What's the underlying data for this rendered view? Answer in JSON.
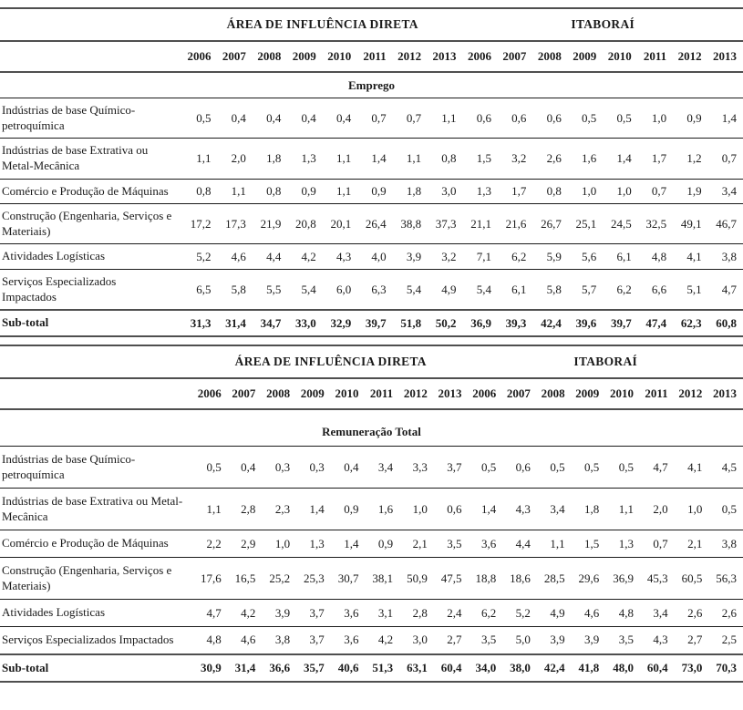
{
  "page": {
    "background_color": "#ffffff",
    "text_color": "#1b1b1b",
    "rule_color": "#4f4f4f"
  },
  "tables": [
    {
      "group_headers": [
        "ÁREA DE INFLUÊNCIA DIRETA",
        "ITABORAÍ"
      ],
      "years": [
        "2006",
        "2007",
        "2008",
        "2009",
        "2010",
        "2011",
        "2012",
        "2013",
        "2006",
        "2007",
        "2008",
        "2009",
        "2010",
        "2011",
        "2012",
        "2013"
      ],
      "section_label": "Emprego",
      "rows": [
        {
          "label": "Indústrias de base Químico-petroquímica",
          "bold": false,
          "values": [
            "0,5",
            "0,4",
            "0,4",
            "0,4",
            "0,4",
            "0,7",
            "0,7",
            "1,1",
            "0,6",
            "0,6",
            "0,6",
            "0,5",
            "0,5",
            "1,0",
            "0,9",
            "1,4"
          ]
        },
        {
          "label": "Indústrias de base Extrativa ou Metal-Mecânica",
          "bold": false,
          "values": [
            "1,1",
            "2,0",
            "1,8",
            "1,3",
            "1,1",
            "1,4",
            "1,1",
            "0,8",
            "1,5",
            "3,2",
            "2,6",
            "1,6",
            "1,4",
            "1,7",
            "1,2",
            "0,7"
          ]
        },
        {
          "label": "Comércio e Produção de Máquinas",
          "bold": false,
          "values": [
            "0,8",
            "1,1",
            "0,8",
            "0,9",
            "1,1",
            "0,9",
            "1,8",
            "3,0",
            "1,3",
            "1,7",
            "0,8",
            "1,0",
            "1,0",
            "0,7",
            "1,9",
            "3,4"
          ]
        },
        {
          "label": "Construção (Engenharia, Serviços e Materiais)",
          "bold": false,
          "values": [
            "17,2",
            "17,3",
            "21,9",
            "20,8",
            "20,1",
            "26,4",
            "38,8",
            "37,3",
            "21,1",
            "21,6",
            "26,7",
            "25,1",
            "24,5",
            "32,5",
            "49,1",
            "46,7"
          ]
        },
        {
          "label": "Atividades Logísticas",
          "bold": false,
          "values": [
            "5,2",
            "4,6",
            "4,4",
            "4,2",
            "4,3",
            "4,0",
            "3,9",
            "3,2",
            "7,1",
            "6,2",
            "5,9",
            "5,6",
            "6,1",
            "4,8",
            "4,1",
            "3,8"
          ]
        },
        {
          "label": "Serviços Especializados Impactados",
          "bold": false,
          "values": [
            "6,5",
            "5,8",
            "5,5",
            "5,4",
            "6,0",
            "6,3",
            "5,4",
            "4,9",
            "5,4",
            "6,1",
            "5,8",
            "5,7",
            "6,2",
            "6,6",
            "5,1",
            "4,7"
          ]
        },
        {
          "label": "Sub-total",
          "bold": true,
          "values": [
            "31,3",
            "31,4",
            "34,7",
            "33,0",
            "32,9",
            "39,7",
            "51,8",
            "50,2",
            "36,9",
            "39,3",
            "42,4",
            "39,6",
            "39,7",
            "47,4",
            "62,3",
            "60,8"
          ]
        }
      ]
    },
    {
      "group_headers": [
        "ÁREA DE INFLUÊNCIA DIRETA",
        "ITABORAÍ"
      ],
      "years": [
        "2006",
        "2007",
        "2008",
        "2009",
        "2010",
        "2011",
        "2012",
        "2013",
        "2006",
        "2007",
        "2008",
        "2009",
        "2010",
        "2011",
        "2012",
        "2013"
      ],
      "section_label": "Remuneração Total",
      "rows": [
        {
          "label": "Indústrias de base Químico-petroquímica",
          "bold": false,
          "values": [
            "0,5",
            "0,4",
            "0,3",
            "0,3",
            "0,4",
            "3,4",
            "3,3",
            "3,7",
            "0,5",
            "0,6",
            "0,5",
            "0,5",
            "0,5",
            "4,7",
            "4,1",
            "4,5"
          ]
        },
        {
          "label": "Indústrias de base Extrativa ou Metal-Mecânica",
          "bold": false,
          "values": [
            "1,1",
            "2,8",
            "2,3",
            "1,4",
            "0,9",
            "1,6",
            "1,0",
            "0,6",
            "1,4",
            "4,3",
            "3,4",
            "1,8",
            "1,1",
            "2,0",
            "1,0",
            "0,5"
          ]
        },
        {
          "label": "Comércio e Produção de Máquinas",
          "bold": false,
          "values": [
            "2,2",
            "2,9",
            "1,0",
            "1,3",
            "1,4",
            "0,9",
            "2,1",
            "3,5",
            "3,6",
            "4,4",
            "1,1",
            "1,5",
            "1,3",
            "0,7",
            "2,1",
            "3,8"
          ]
        },
        {
          "label": "Construção (Engenharia, Serviços e Materiais)",
          "bold": false,
          "values": [
            "17,6",
            "16,5",
            "25,2",
            "25,3",
            "30,7",
            "38,1",
            "50,9",
            "47,5",
            "18,8",
            "18,6",
            "28,5",
            "29,6",
            "36,9",
            "45,3",
            "60,5",
            "56,3"
          ]
        },
        {
          "label": "Atividades Logísticas",
          "bold": false,
          "values": [
            "4,7",
            "4,2",
            "3,9",
            "3,7",
            "3,6",
            "3,1",
            "2,8",
            "2,4",
            "6,2",
            "5,2",
            "4,9",
            "4,6",
            "4,8",
            "3,4",
            "2,6",
            "2,6"
          ]
        },
        {
          "label": "Serviços Especializados Impactados",
          "bold": false,
          "values": [
            "4,8",
            "4,6",
            "3,8",
            "3,7",
            "3,6",
            "4,2",
            "3,0",
            "2,7",
            "3,5",
            "5,0",
            "3,9",
            "3,9",
            "3,5",
            "4,3",
            "2,7",
            "2,5"
          ]
        },
        {
          "label": "Sub-total",
          "bold": true,
          "values": [
            "30,9",
            "31,4",
            "36,6",
            "35,7",
            "40,6",
            "51,3",
            "63,1",
            "60,4",
            "34,0",
            "38,0",
            "42,4",
            "41,8",
            "48,0",
            "60,4",
            "73,0",
            "70,3"
          ]
        }
      ]
    }
  ]
}
